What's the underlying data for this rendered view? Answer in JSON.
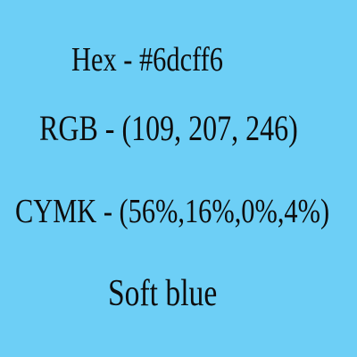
{
  "swatch": {
    "color": "#6dcff6"
  },
  "text": {
    "hex_line": "Hex - #6dcff6",
    "rgb_line": "RGB - (109, 207, 246)",
    "cmyk_line": "CYMK - (56%,16%,0%,4%)",
    "color_name": "Soft blue"
  }
}
